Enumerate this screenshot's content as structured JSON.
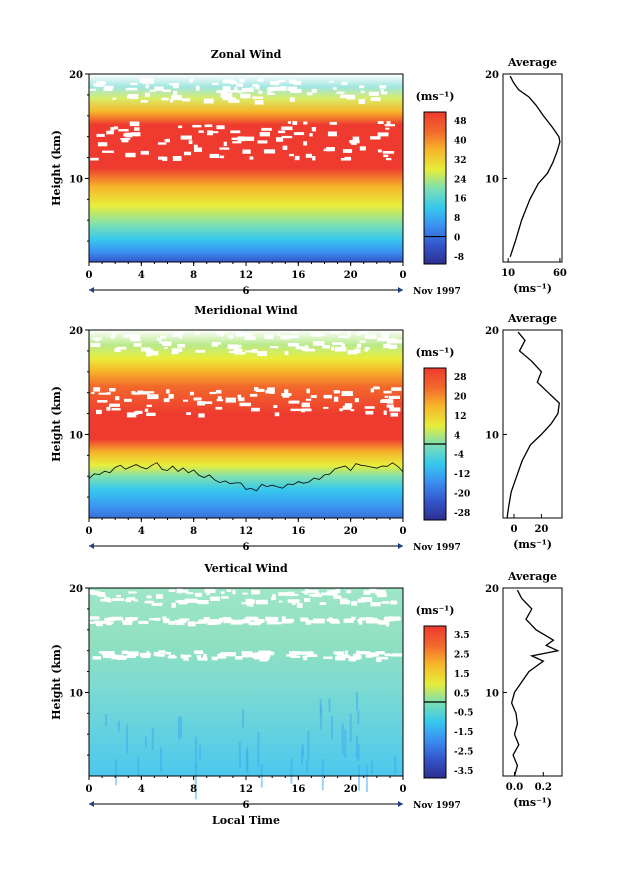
{
  "chart_data": [
    {
      "type": "heatmap",
      "title": "Zonal Wind",
      "ylabel": "Height (km)",
      "xticks": [
        "0",
        "4",
        "8",
        "12",
        "16",
        "20",
        "0"
      ],
      "date_label": "6",
      "date_suffix": "Nov 1997",
      "ylim": [
        2,
        20
      ],
      "yticks": [
        "20",
        "10"
      ],
      "colorbar_unit": "(ms⁻¹)",
      "colorbar_labels": [
        "48",
        "40",
        "32",
        "24",
        "16",
        "8",
        "0",
        "-8"
      ],
      "profile": {
        "title": "Average",
        "xlabel": "(ms⁻¹)",
        "xticks": [
          "10",
          "60"
        ],
        "xlim": [
          5,
          62
        ],
        "heights": [
          2.5,
          4,
          6,
          8,
          9.5,
          10.5,
          11.5,
          12.5,
          13.5,
          14,
          15,
          16,
          17,
          17.8,
          18.5,
          19.2,
          19.8
        ],
        "values": [
          12,
          17,
          23,
          31,
          39,
          48,
          53,
          57,
          60,
          59,
          52,
          44,
          37,
          30,
          20,
          15,
          12
        ]
      }
    },
    {
      "type": "heatmap",
      "title": "Meridional Wind",
      "ylabel": "Height (km)",
      "xticks": [
        "0",
        "4",
        "8",
        "12",
        "16",
        "20",
        "0"
      ],
      "date_label": "6",
      "date_suffix": "Nov 1997",
      "ylim": [
        2,
        20
      ],
      "yticks": [
        "20",
        "10"
      ],
      "colorbar_unit": "(ms⁻¹)",
      "colorbar_labels": [
        "28",
        "20",
        "12",
        "4",
        "-4",
        "-12",
        "-20",
        "-28"
      ],
      "profile": {
        "title": "Average",
        "xlabel": "(ms⁻¹)",
        "xticks": [
          "0",
          "20"
        ],
        "xlim": [
          -8,
          35
        ],
        "heights": [
          2,
          3,
          4.5,
          6,
          7.5,
          9,
          10,
          11,
          12,
          13,
          14,
          15,
          16,
          17,
          18,
          19,
          19.8
        ],
        "values": [
          -5,
          -4,
          -2,
          2,
          6,
          12,
          20,
          27,
          32,
          33,
          25,
          17,
          20,
          13,
          4,
          8,
          3
        ]
      }
    },
    {
      "type": "heatmap",
      "title": "Vertical Wind",
      "ylabel": "Height (km)",
      "xlabel": "Local Time",
      "xticks": [
        "0",
        "4",
        "8",
        "12",
        "16",
        "20",
        "0"
      ],
      "date_label": "6",
      "date_suffix": "Nov 1997",
      "ylim": [
        2,
        20
      ],
      "yticks": [
        "20",
        "10"
      ],
      "colorbar_unit": "(ms⁻¹)",
      "colorbar_labels": [
        "3.5",
        "2.5",
        "1.5",
        "0.5",
        "-0.5",
        "-1.5",
        "-2.5",
        "-3.5"
      ],
      "profile": {
        "title": "Average",
        "xlabel": "(ms⁻¹)",
        "xticks": [
          "0.0",
          "0.2"
        ],
        "xlim": [
          -0.08,
          0.33
        ],
        "heights": [
          2,
          3,
          4,
          5,
          6,
          7,
          8,
          9,
          10,
          11,
          12,
          13,
          13.5,
          14,
          14.5,
          15,
          16,
          17,
          18,
          19,
          19.8
        ],
        "values": [
          0.0,
          0.02,
          -0.01,
          0.03,
          0.0,
          0.02,
          0.01,
          -0.02,
          0.0,
          0.05,
          0.1,
          0.2,
          0.12,
          0.3,
          0.22,
          0.27,
          0.15,
          0.08,
          0.12,
          0.05,
          0.02
        ]
      }
    }
  ]
}
